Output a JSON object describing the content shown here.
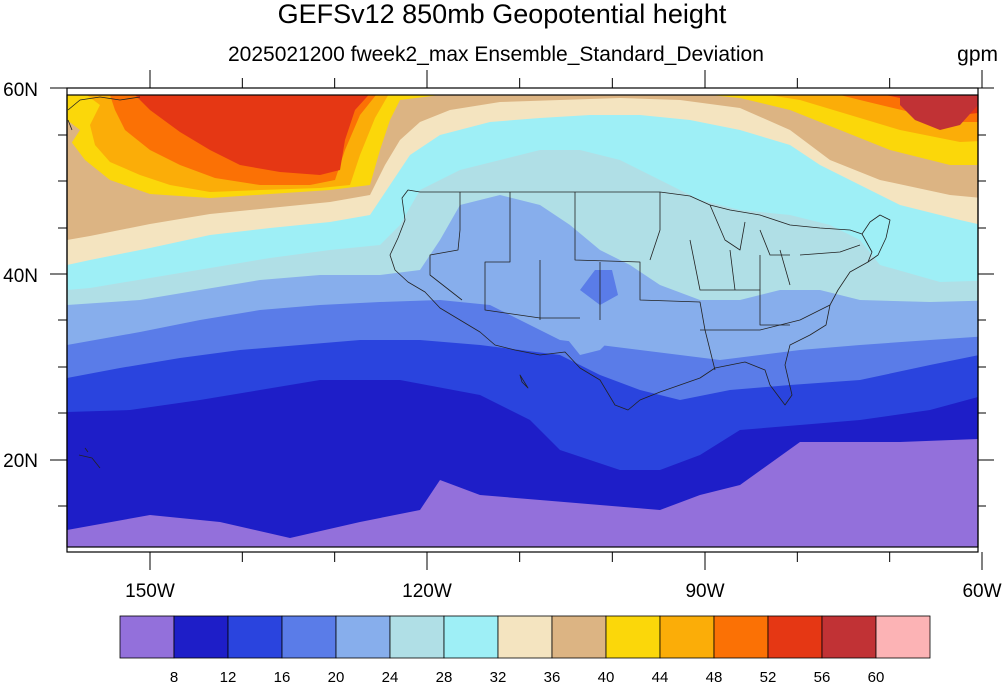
{
  "title": "GEFSv12 850mb Geopotential height",
  "subtitle": "2025021200 fweek2_max Ensemble_Standard_Deviation",
  "units": "gpm",
  "axes": {
    "lon_labels": [
      "150W",
      "120W",
      "90W",
      "60W"
    ],
    "lat_labels": [
      "60N",
      "40N",
      "20N"
    ]
  },
  "colorbar": {
    "levels": [
      8,
      12,
      16,
      20,
      24,
      28,
      32,
      36,
      40,
      44,
      48,
      52,
      56,
      60
    ],
    "colors": [
      "#9370db",
      "#1e1ec8",
      "#2a44de",
      "#5a7ce8",
      "#87aeec",
      "#b0dfe6",
      "#9eeff6",
      "#f4e4c0",
      "#dcb483",
      "#fbd70a",
      "#fbad08",
      "#fb7105",
      "#e53714",
      "#c13235",
      "#fcb3b5"
    ]
  }
}
